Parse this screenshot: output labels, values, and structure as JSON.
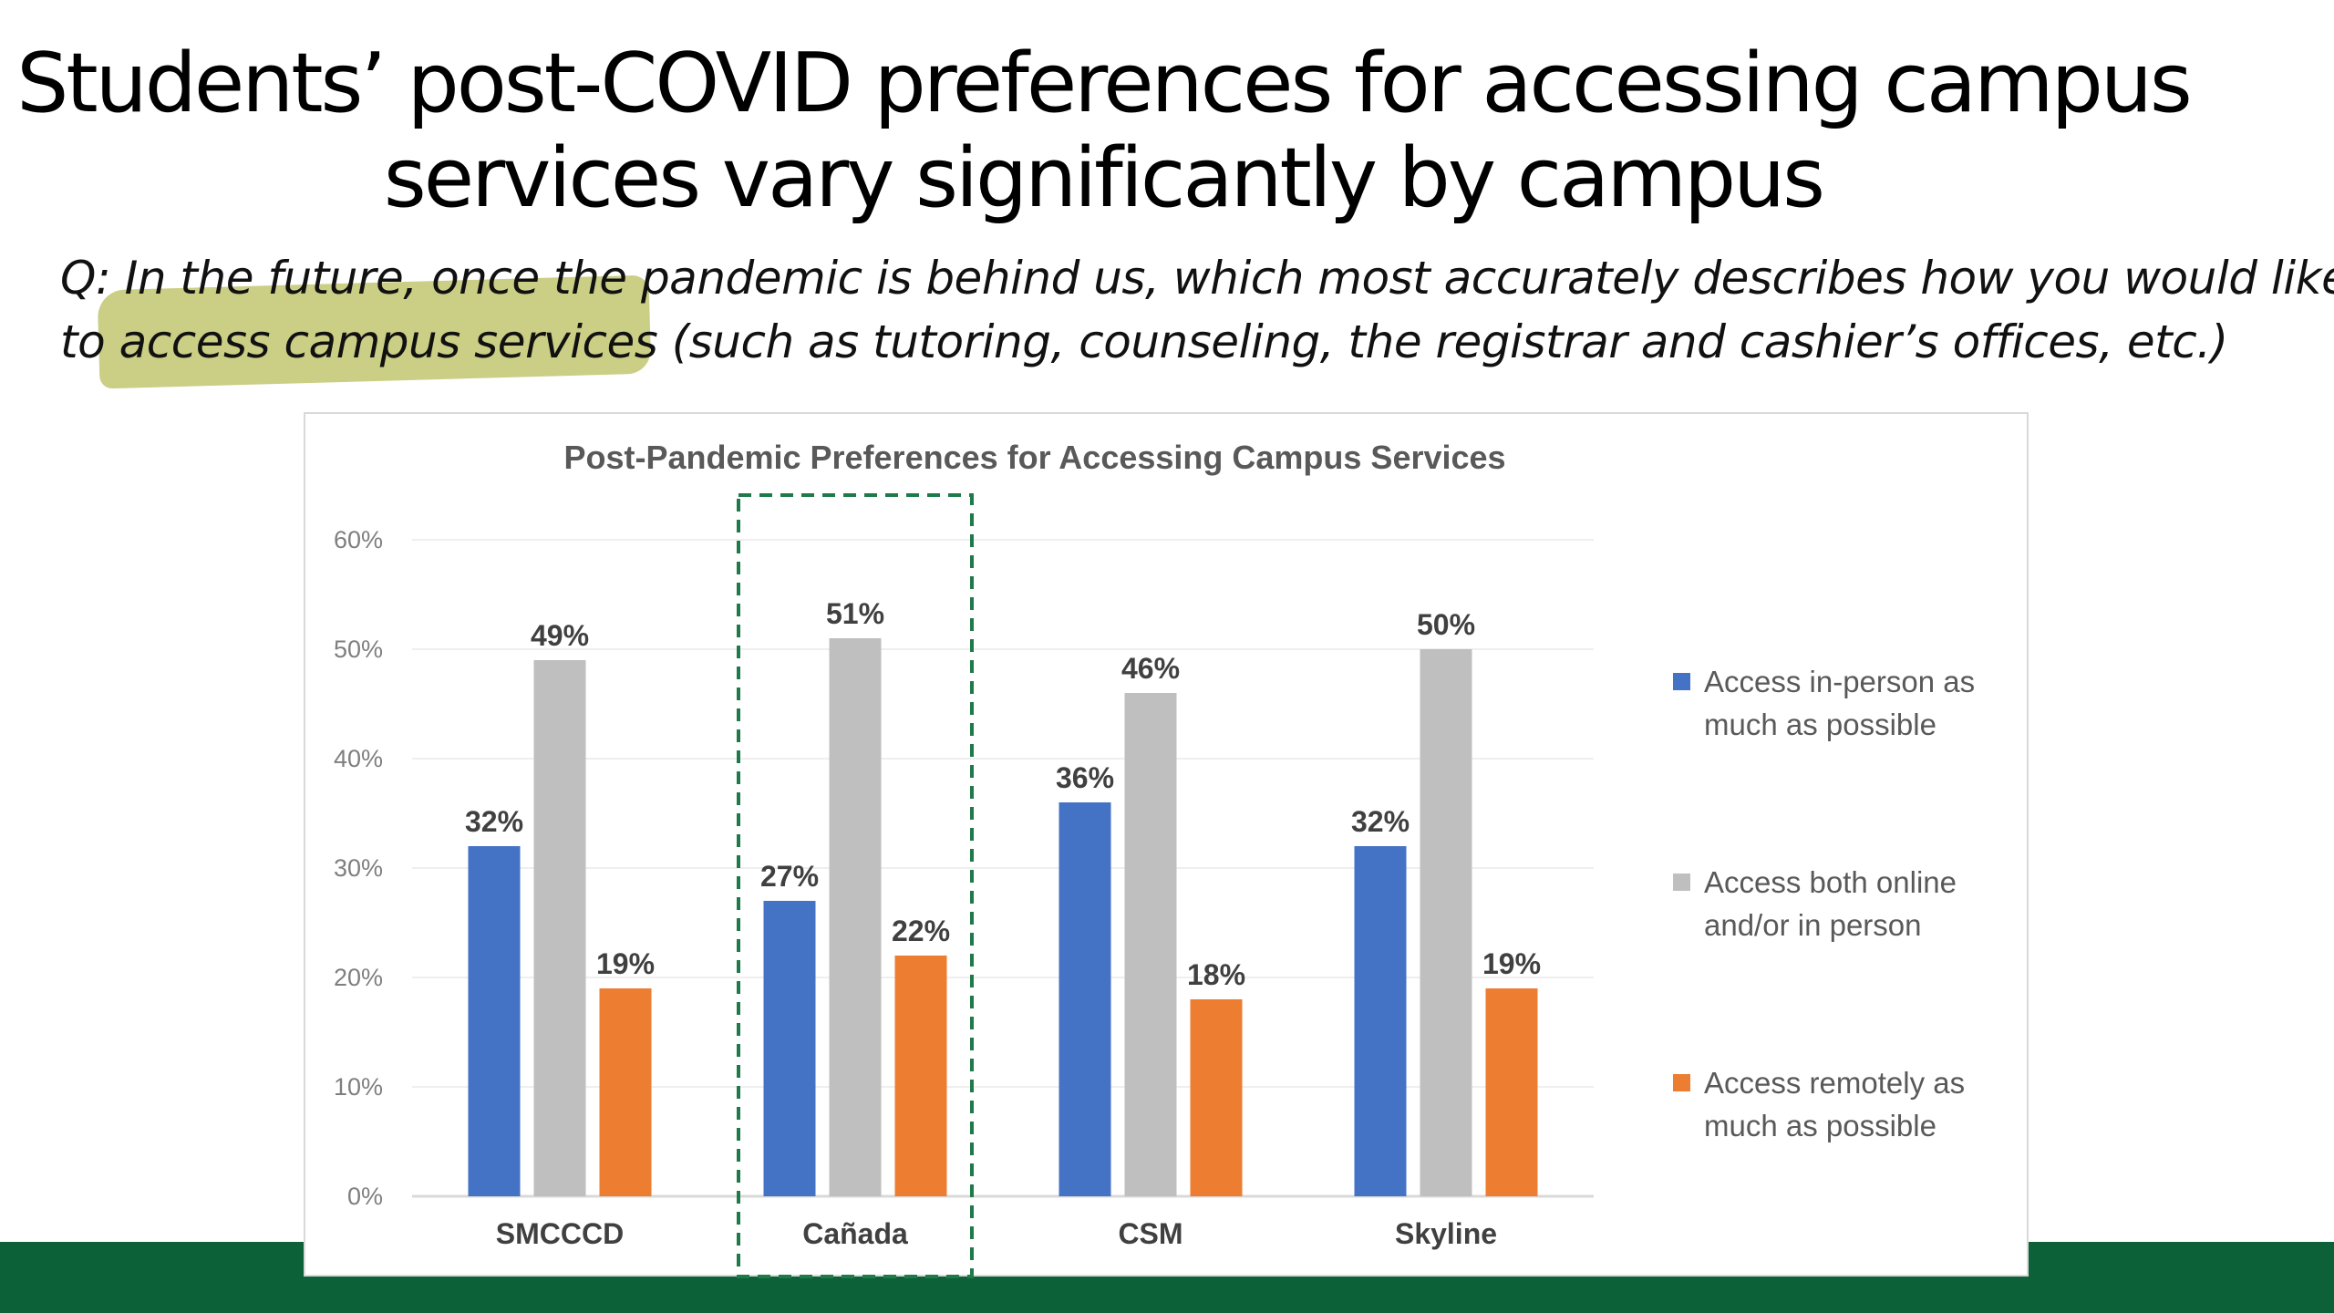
{
  "slide": {
    "title_line1": "Students’ post-COVID preferences for accessing campus",
    "title_line2": "services vary significantly by campus",
    "question_line1": "Q: In the future, once the pandemic is behind us, which most accurately describes how you would like",
    "question_line2": "to access campus services (such as tutoring, counseling, the registrar and cashier’s offices, etc.)",
    "highlight_color": "#b9bd5c",
    "footer_color": "#0d6138"
  },
  "chart_data": {
    "type": "bar",
    "title": "Post-Pandemic Preferences for Accessing Campus Services",
    "categories": [
      "SMCCCD",
      "Cañada",
      "CSM",
      "Skyline"
    ],
    "series": [
      {
        "name": "Access in-person as much as possible",
        "color": "#4472c4",
        "values": [
          32,
          27,
          36,
          32
        ],
        "labels": [
          "32%",
          "27%",
          "36%",
          "32%"
        ]
      },
      {
        "name": "Access both online and/or in person",
        "color": "#bfbfbf",
        "values": [
          49,
          51,
          46,
          50
        ],
        "labels": [
          "49%",
          "51%",
          "46%",
          "50%"
        ]
      },
      {
        "name": "Access remotely as much as possible",
        "color": "#ed7d31",
        "values": [
          19,
          22,
          18,
          19
        ],
        "labels": [
          "19%",
          "22%",
          "18%",
          "19%"
        ]
      }
    ],
    "yticks": [
      "0%",
      "10%",
      "20%",
      "30%",
      "40%",
      "50%",
      "60%"
    ],
    "ylim": [
      0,
      60
    ],
    "grid": true,
    "legend_position": "right",
    "highlighted_category": "Cañada",
    "highlight_box_color": "#1f7a4a"
  }
}
